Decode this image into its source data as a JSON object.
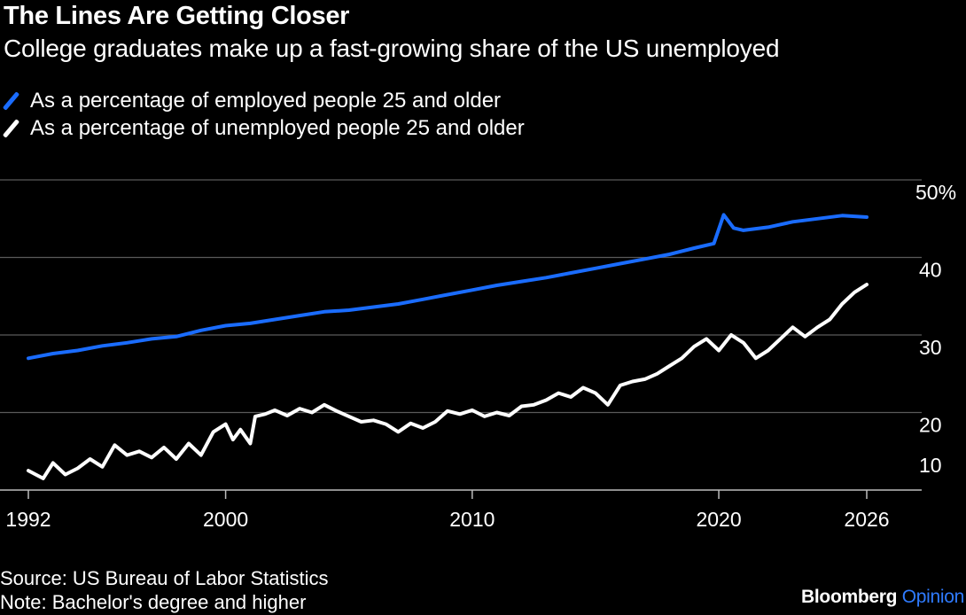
{
  "title": "The Lines Are Getting Closer",
  "subtitle": "College graduates make up a fast-growing share of the US unemployed",
  "legend": [
    {
      "label": "As a percentage of employed people 25 and older",
      "color": "#1a6cff"
    },
    {
      "label": "As a percentage of unemployed people 25 and older",
      "color": "#ffffff"
    }
  ],
  "footer": {
    "source": "Source: US Bureau of Labor Statistics",
    "note": "Note: Bachelor's degree and higher"
  },
  "brand": {
    "name": "Bloomberg",
    "suffix": "Opinion"
  },
  "chart_data": {
    "type": "line",
    "x_ticks": [
      1992,
      2000,
      2010,
      2020,
      2026
    ],
    "y_ticks": [
      {
        "value": 10,
        "label": "10"
      },
      {
        "value": 20,
        "label": "20"
      },
      {
        "value": 30,
        "label": "30"
      },
      {
        "value": 40,
        "label": "40"
      },
      {
        "value": 50,
        "label": "50%"
      }
    ],
    "xlim": [
      1992,
      2026
    ],
    "ylim": [
      8,
      50
    ],
    "grid": "horizontal",
    "series": [
      {
        "name": "As a percentage of employed people 25 and older",
        "color": "#1a6cff",
        "points": [
          [
            1992.0,
            27.0
          ],
          [
            1993.0,
            27.6
          ],
          [
            1994.0,
            28.0
          ],
          [
            1995.0,
            28.6
          ],
          [
            1996.0,
            29.0
          ],
          [
            1997.0,
            29.5
          ],
          [
            1998.0,
            29.8
          ],
          [
            1999.0,
            30.6
          ],
          [
            2000.0,
            31.2
          ],
          [
            2001.0,
            31.5
          ],
          [
            2002.0,
            32.0
          ],
          [
            2003.0,
            32.5
          ],
          [
            2004.0,
            33.0
          ],
          [
            2005.0,
            33.2
          ],
          [
            2006.0,
            33.6
          ],
          [
            2007.0,
            34.0
          ],
          [
            2008.0,
            34.6
          ],
          [
            2009.0,
            35.2
          ],
          [
            2010.0,
            35.8
          ],
          [
            2011.0,
            36.4
          ],
          [
            2012.0,
            36.9
          ],
          [
            2013.0,
            37.4
          ],
          [
            2014.0,
            38.0
          ],
          [
            2015.0,
            38.6
          ],
          [
            2016.0,
            39.2
          ],
          [
            2017.0,
            39.8
          ],
          [
            2018.0,
            40.4
          ],
          [
            2019.0,
            41.2
          ],
          [
            2019.8,
            41.8
          ],
          [
            2020.2,
            45.5
          ],
          [
            2020.6,
            43.8
          ],
          [
            2021.0,
            43.5
          ],
          [
            2022.0,
            43.9
          ],
          [
            2023.0,
            44.6
          ],
          [
            2024.0,
            45.0
          ],
          [
            2025.0,
            45.4
          ],
          [
            2026.0,
            45.2
          ]
        ]
      },
      {
        "name": "As a percentage of unemployed people 25 and older",
        "color": "#ffffff",
        "points": [
          [
            1992.0,
            12.5
          ],
          [
            1992.6,
            11.5
          ],
          [
            1993.0,
            13.5
          ],
          [
            1993.5,
            12.0
          ],
          [
            1994.0,
            12.8
          ],
          [
            1994.5,
            14.0
          ],
          [
            1995.0,
            13.0
          ],
          [
            1995.5,
            15.8
          ],
          [
            1996.0,
            14.5
          ],
          [
            1996.5,
            15.0
          ],
          [
            1997.0,
            14.2
          ],
          [
            1997.5,
            15.5
          ],
          [
            1998.0,
            14.0
          ],
          [
            1998.5,
            16.0
          ],
          [
            1999.0,
            14.5
          ],
          [
            1999.5,
            17.5
          ],
          [
            2000.0,
            18.5
          ],
          [
            2000.3,
            16.5
          ],
          [
            2000.6,
            17.8
          ],
          [
            2001.0,
            16.0
          ],
          [
            2001.2,
            19.5
          ],
          [
            2001.6,
            19.8
          ],
          [
            2002.0,
            20.3
          ],
          [
            2002.5,
            19.6
          ],
          [
            2003.0,
            20.5
          ],
          [
            2003.5,
            20.0
          ],
          [
            2004.0,
            21.0
          ],
          [
            2004.5,
            20.2
          ],
          [
            2005.0,
            19.5
          ],
          [
            2005.5,
            18.8
          ],
          [
            2006.0,
            19.0
          ],
          [
            2006.5,
            18.5
          ],
          [
            2007.0,
            17.5
          ],
          [
            2007.5,
            18.6
          ],
          [
            2008.0,
            18.0
          ],
          [
            2008.5,
            18.8
          ],
          [
            2009.0,
            20.2
          ],
          [
            2009.5,
            19.8
          ],
          [
            2010.0,
            20.3
          ],
          [
            2010.5,
            19.5
          ],
          [
            2011.0,
            20.0
          ],
          [
            2011.5,
            19.6
          ],
          [
            2012.0,
            20.8
          ],
          [
            2012.5,
            21.0
          ],
          [
            2013.0,
            21.6
          ],
          [
            2013.5,
            22.5
          ],
          [
            2014.0,
            22.0
          ],
          [
            2014.5,
            23.2
          ],
          [
            2015.0,
            22.5
          ],
          [
            2015.5,
            21.0
          ],
          [
            2016.0,
            23.5
          ],
          [
            2016.5,
            24.0
          ],
          [
            2017.0,
            24.3
          ],
          [
            2017.5,
            25.0
          ],
          [
            2018.0,
            26.0
          ],
          [
            2018.5,
            27.0
          ],
          [
            2019.0,
            28.5
          ],
          [
            2019.5,
            29.5
          ],
          [
            2020.0,
            28.0
          ],
          [
            2020.5,
            30.0
          ],
          [
            2021.0,
            29.0
          ],
          [
            2021.5,
            27.0
          ],
          [
            2022.0,
            28.0
          ],
          [
            2022.5,
            29.5
          ],
          [
            2023.0,
            31.0
          ],
          [
            2023.5,
            29.8
          ],
          [
            2024.0,
            31.0
          ],
          [
            2024.5,
            32.0
          ],
          [
            2025.0,
            34.0
          ],
          [
            2025.5,
            35.5
          ],
          [
            2026.0,
            36.5
          ]
        ]
      }
    ]
  }
}
